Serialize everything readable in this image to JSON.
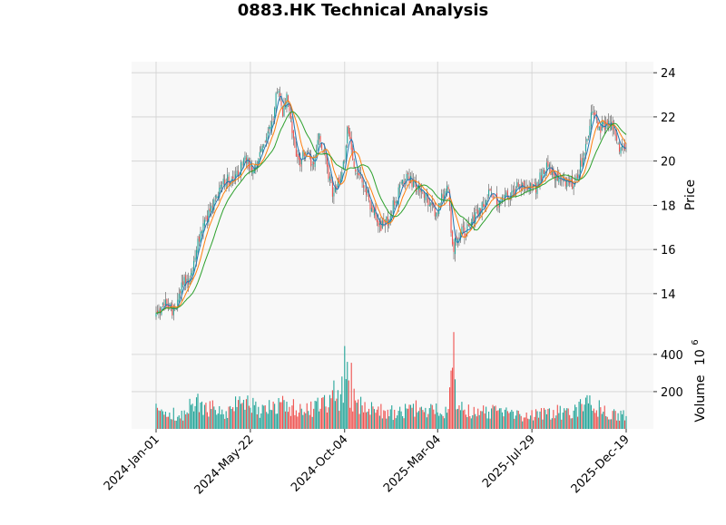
{
  "chart_data": {
    "type": "candlestick",
    "title": "0883.HK Technical Analysis",
    "ylabel": "Price",
    "volume_label": "Volume",
    "volume_unit_base": "10",
    "volume_unit_exp": "6",
    "x_ticks": [
      "2024-Jan-01",
      "2024-May-22",
      "2024-Oct-04",
      "2025-Mar-04",
      "2025-Jul-29",
      "2025-Dec-19"
    ],
    "price_ticks": [
      "14",
      "16",
      "18",
      "20",
      "22",
      "24"
    ],
    "volume_ticks": [
      "200",
      "400"
    ],
    "price_ylim": [
      12.6,
      24.5
    ],
    "volume_ylim": [
      0,
      560
    ],
    "grid": true,
    "colors": {
      "up": "#26a69a",
      "down": "#ef5350",
      "wick": "#555555",
      "ma_short": "#1f77b4",
      "ma_mid": "#ff7f0e",
      "ma_long": "#2ca02c",
      "panel_bg": "#f8f8f8",
      "grid": "#d0d0d0"
    },
    "price_anchors": [
      [
        0,
        13.0
      ],
      [
        8,
        13.6
      ],
      [
        14,
        13.1
      ],
      [
        20,
        14.6
      ],
      [
        25,
        14.5
      ],
      [
        32,
        16.5
      ],
      [
        42,
        18.0
      ],
      [
        50,
        19.2
      ],
      [
        58,
        19.0
      ],
      [
        66,
        20.3
      ],
      [
        72,
        19.4
      ],
      [
        80,
        20.8
      ],
      [
        86,
        21.6
      ],
      [
        90,
        23.3
      ],
      [
        94,
        22.2
      ],
      [
        97,
        23.0
      ],
      [
        103,
        20.6
      ],
      [
        107,
        20.0
      ],
      [
        112,
        20.4
      ],
      [
        116,
        19.8
      ],
      [
        121,
        21.3
      ],
      [
        126,
        20.0
      ],
      [
        131,
        18.5
      ],
      [
        135,
        19.0
      ],
      [
        140,
        20.0
      ],
      [
        142,
        21.8
      ],
      [
        146,
        19.8
      ],
      [
        152,
        19.5
      ],
      [
        158,
        18.2
      ],
      [
        166,
        17.0
      ],
      [
        172,
        17.3
      ],
      [
        178,
        18.3
      ],
      [
        186,
        19.3
      ],
      [
        191,
        18.9
      ],
      [
        197,
        18.7
      ],
      [
        204,
        18.0
      ],
      [
        208,
        17.6
      ],
      [
        214,
        18.6
      ],
      [
        217,
        18.9
      ],
      [
        220,
        16.0
      ],
      [
        226,
        16.8
      ],
      [
        232,
        16.9
      ],
      [
        240,
        17.8
      ],
      [
        248,
        18.6
      ],
      [
        254,
        18.0
      ],
      [
        262,
        18.5
      ],
      [
        268,
        18.8
      ],
      [
        276,
        18.7
      ],
      [
        282,
        18.8
      ],
      [
        290,
        19.9
      ],
      [
        296,
        19.3
      ],
      [
        302,
        19.0
      ],
      [
        310,
        19.0
      ],
      [
        316,
        20.0
      ],
      [
        320,
        20.8
      ],
      [
        324,
        22.5
      ],
      [
        328,
        21.5
      ],
      [
        334,
        21.6
      ],
      [
        340,
        21.6
      ],
      [
        344,
        20.3
      ],
      [
        349,
        20.7
      ]
    ],
    "volume_anchors": [
      [
        0,
        95
      ],
      [
        10,
        80
      ],
      [
        20,
        75
      ],
      [
        28,
        150
      ],
      [
        35,
        120
      ],
      [
        45,
        110
      ],
      [
        52,
        90
      ],
      [
        58,
        120
      ],
      [
        66,
        130
      ],
      [
        74,
        110
      ],
      [
        82,
        100
      ],
      [
        90,
        140
      ],
      [
        98,
        120
      ],
      [
        105,
        110
      ],
      [
        112,
        100
      ],
      [
        118,
        110
      ],
      [
        124,
        130
      ],
      [
        130,
        150
      ],
      [
        136,
        160
      ],
      [
        140,
        230
      ],
      [
        146,
        160
      ],
      [
        152,
        120
      ],
      [
        160,
        100
      ],
      [
        170,
        90
      ],
      [
        180,
        85
      ],
      [
        190,
        110
      ],
      [
        200,
        100
      ],
      [
        210,
        100
      ],
      [
        216,
        90
      ],
      [
        220,
        260
      ],
      [
        226,
        110
      ],
      [
        232,
        95
      ],
      [
        240,
        90
      ],
      [
        250,
        95
      ],
      [
        260,
        90
      ],
      [
        268,
        75
      ],
      [
        276,
        70
      ],
      [
        286,
        85
      ],
      [
        296,
        90
      ],
      [
        304,
        90
      ],
      [
        312,
        110
      ],
      [
        318,
        130
      ],
      [
        324,
        130
      ],
      [
        330,
        110
      ],
      [
        338,
        75
      ],
      [
        344,
        70
      ],
      [
        349,
        75
      ]
    ],
    "volume_spikes": [
      [
        140,
        445
      ],
      [
        142,
        360
      ],
      [
        145,
        355
      ],
      [
        221,
        520
      ],
      [
        188,
        130
      ],
      [
        132,
        260
      ]
    ],
    "n_bars": 350
  }
}
